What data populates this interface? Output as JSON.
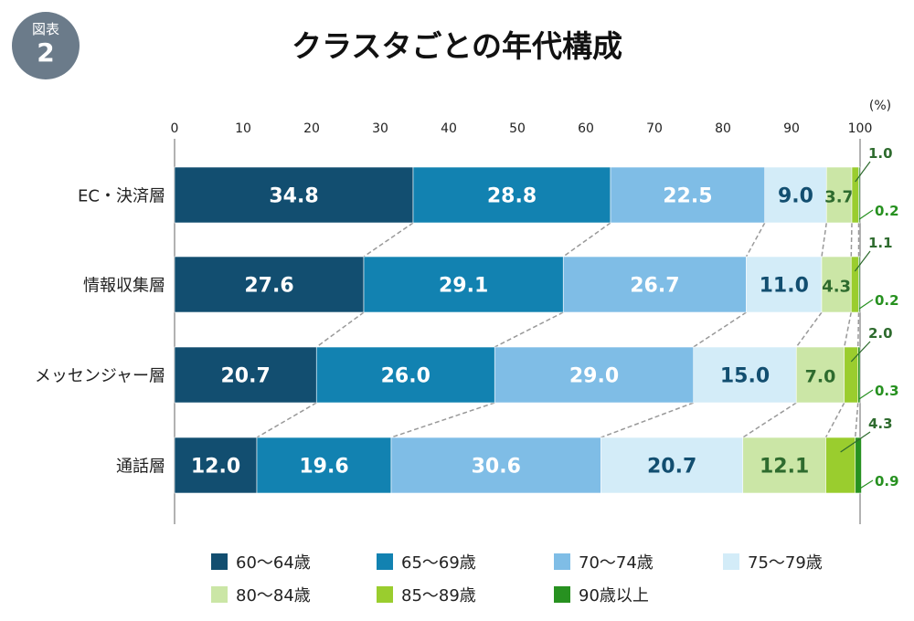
{
  "badge": {
    "label": "図表",
    "number": "2"
  },
  "chart_data": {
    "type": "bar",
    "orientation": "horizontal",
    "stacked": true,
    "title": "クラスタごとの年代構成",
    "unit": "(%)",
    "xlim": [
      0,
      100
    ],
    "ticks": [
      "0",
      "10",
      "20",
      "30",
      "40",
      "50",
      "60",
      "70",
      "80",
      "90",
      "100"
    ],
    "categories": [
      "EC・決済層",
      "情報収集層",
      "メッセンジャー層",
      "通話層"
    ],
    "series": [
      {
        "name": "60〜64歳",
        "color": "#124e70",
        "text_color": "#ffffff",
        "values": [
          34.8,
          27.6,
          20.7,
          12.0
        ],
        "labels": [
          "34.8",
          "27.6",
          "20.7",
          "12.0"
        ]
      },
      {
        "name": "65〜69歳",
        "color": "#1282b1",
        "text_color": "#ffffff",
        "values": [
          28.8,
          29.1,
          26.0,
          19.6
        ],
        "labels": [
          "28.8",
          "29.1",
          "26.0",
          "19.6"
        ]
      },
      {
        "name": "70〜74歳",
        "color": "#7fbde6",
        "text_color": "#ffffff",
        "values": [
          22.5,
          26.7,
          29.0,
          30.6
        ],
        "labels": [
          "22.5",
          "26.7",
          "29.0",
          "30.6"
        ]
      },
      {
        "name": "75〜79歳",
        "color": "#d3ecf8",
        "text_color": "#124e70",
        "values": [
          9.0,
          11.0,
          15.0,
          20.7
        ],
        "labels": [
          "9.0",
          "11.0",
          "15.0",
          "20.7"
        ]
      },
      {
        "name": "80〜84歳",
        "color": "#cbe6a6",
        "text_color": "#2e6b2e",
        "values": [
          3.7,
          4.3,
          7.0,
          12.1
        ],
        "labels": [
          "3.7",
          "4.3",
          "7.0",
          "12.1"
        ]
      },
      {
        "name": "85〜89歳",
        "color": "#9acd2e",
        "text_color": "#2e6b2e",
        "values": [
          1.0,
          1.1,
          2.0,
          4.3
        ],
        "labels": [
          "1.0",
          "1.1",
          "2.0",
          "4.3"
        ]
      },
      {
        "name": "90歳以上",
        "color": "#279120",
        "text_color": "#279120",
        "values": [
          0.2,
          0.2,
          0.3,
          0.9
        ],
        "labels": [
          "0.2",
          "0.2",
          "0.3",
          "0.9"
        ]
      }
    ]
  }
}
